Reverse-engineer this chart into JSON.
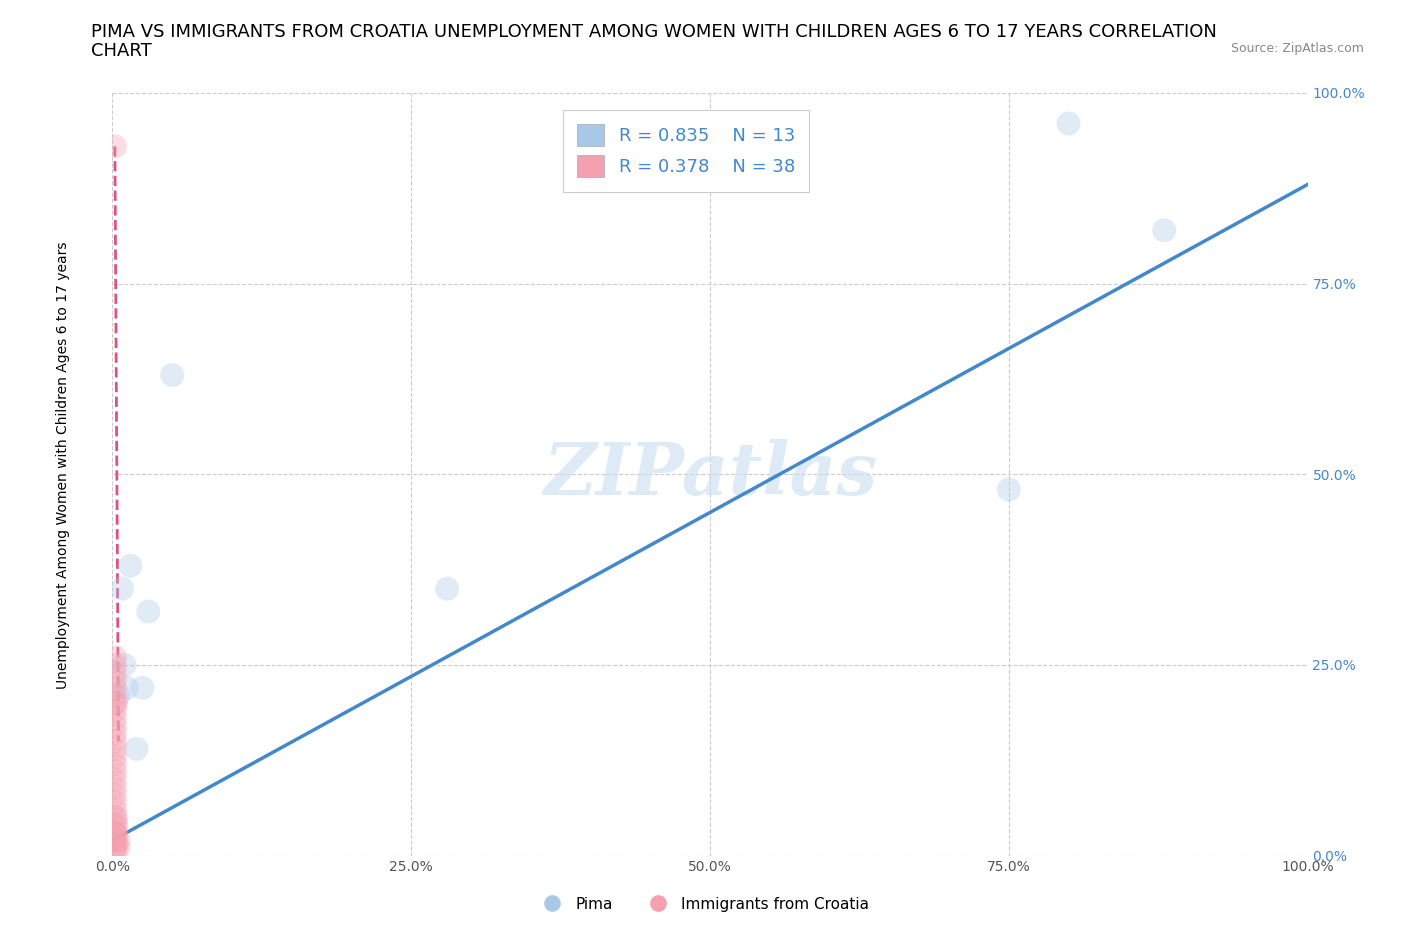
{
  "title_line1": "PIMA VS IMMIGRANTS FROM CROATIA UNEMPLOYMENT AMONG WOMEN WITH CHILDREN AGES 6 TO 17 YEARS CORRELATION",
  "title_line2": "CHART",
  "source_text": "Source: ZipAtlas.com",
  "ylabel": "Unemployment Among Women with Children Ages 6 to 17 years",
  "xlim": [
    0,
    1
  ],
  "ylim": [
    0,
    1
  ],
  "xticks": [
    0,
    0.25,
    0.5,
    0.75,
    1.0
  ],
  "yticks": [
    0,
    0.25,
    0.5,
    0.75,
    1.0
  ],
  "xticklabels": [
    "0.0%",
    "25.0%",
    "50.0%",
    "75.0%",
    "100.0%"
  ],
  "yticklabels": [
    "0.0%",
    "25.0%",
    "50.0%",
    "75.0%",
    "100.0%"
  ],
  "pima_color": "#a8c8e8",
  "croatia_color": "#f4a0b0",
  "pima_line_color": "#4488cc",
  "croatia_line_color": "#e05080",
  "legend_R1": "R = 0.835",
  "legend_N1": "N = 13",
  "legend_R2": "R = 0.378",
  "legend_N2": "N = 38",
  "legend_color1": "#a8c8e8",
  "legend_color2": "#f4a0b0",
  "legend_text_color": "#4488cc",
  "watermark": "ZIPatlas",
  "watermark_color": "#c8dff0",
  "pima_x": [
    0.005,
    0.008,
    0.01,
    0.012,
    0.015,
    0.02,
    0.025,
    0.03,
    0.05,
    0.28,
    0.75,
    0.8,
    0.88
  ],
  "pima_y": [
    0.21,
    0.35,
    0.25,
    0.22,
    0.38,
    0.14,
    0.22,
    0.32,
    0.63,
    0.35,
    0.48,
    0.96,
    0.82
  ],
  "croatia_x": [
    0.002,
    0.002,
    0.002,
    0.002,
    0.002,
    0.002,
    0.002,
    0.002,
    0.002,
    0.002,
    0.002,
    0.002,
    0.002,
    0.002,
    0.002,
    0.002,
    0.002,
    0.002,
    0.002,
    0.002,
    0.002,
    0.002,
    0.002,
    0.002,
    0.002,
    0.002,
    0.002,
    0.002,
    0.002,
    0.002,
    0.003,
    0.003,
    0.003,
    0.003,
    0.003,
    0.003,
    0.005,
    0.005
  ],
  "croatia_y": [
    0.93,
    0.01,
    0.02,
    0.03,
    0.04,
    0.05,
    0.06,
    0.07,
    0.08,
    0.09,
    0.1,
    0.11,
    0.12,
    0.13,
    0.14,
    0.15,
    0.16,
    0.17,
    0.18,
    0.19,
    0.2,
    0.21,
    0.22,
    0.23,
    0.24,
    0.25,
    0.26,
    0.01,
    0.02,
    0.03,
    0.01,
    0.02,
    0.03,
    0.04,
    0.05,
    0.2,
    0.01,
    0.02
  ],
  "pima_line_x0": 0.0,
  "pima_line_y0": 0.02,
  "pima_line_x1": 1.0,
  "pima_line_y1": 0.88,
  "croatia_line_x0": 0.002,
  "croatia_line_y0": 0.93,
  "croatia_line_x1": 0.005,
  "croatia_line_y1": 0.15,
  "title_fontsize": 13,
  "axis_label_fontsize": 10,
  "tick_fontsize": 10,
  "legend_fontsize": 13,
  "dot_size": 300,
  "dot_alpha": 0.35,
  "grid_color": "#cccccc",
  "background_color": "#ffffff"
}
